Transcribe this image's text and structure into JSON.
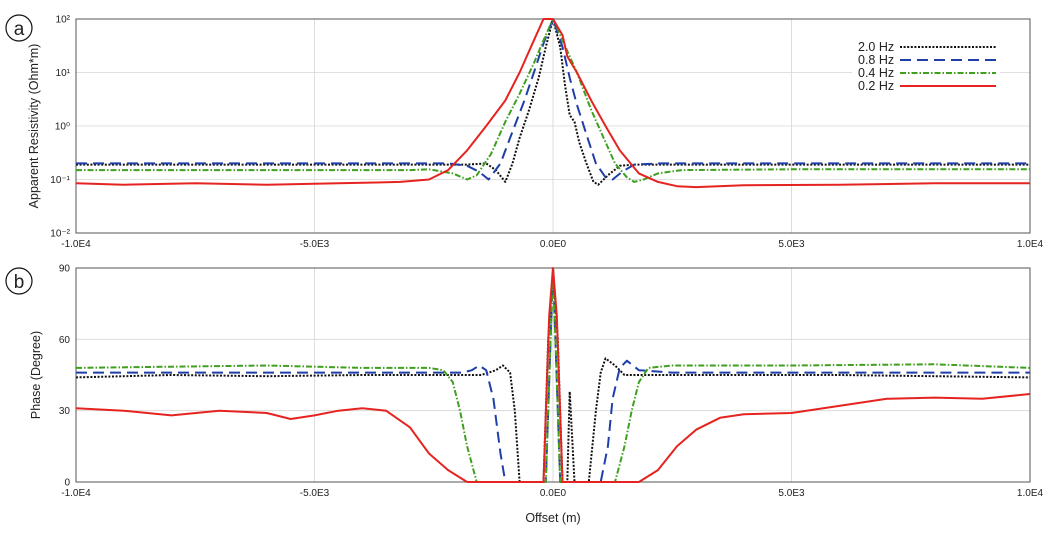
{
  "figure": {
    "panel_a_label": "a",
    "panel_b_label": "b",
    "xlabel": "Offset (m)"
  },
  "legend": [
    "2.0 Hz",
    "0.8 Hz",
    "0.4 Hz",
    "0.2 Hz"
  ],
  "chart_data": [
    {
      "type": "line",
      "panel": "a",
      "ylabel": "Apparent Resistivity (Ohm*m)",
      "yscale": "log",
      "xlim": [
        -10000,
        10000
      ],
      "ylim": [
        0.01,
        100
      ],
      "xticks": [
        -10000,
        -5000,
        0,
        5000,
        10000
      ],
      "xtick_labels": [
        "-1.0E4",
        "-5.0E3",
        "0.0E0",
        "5.0E3",
        "1.0E4"
      ],
      "yticks": [
        0.01,
        0.1,
        1,
        10,
        100
      ],
      "ytick_labels": [
        "10⁻²",
        "10⁻¹",
        "10⁰",
        "10¹",
        "10²"
      ],
      "series": [
        {
          "name": "2.0 Hz",
          "color": "#111111",
          "dash": "2,1.6",
          "points": [
            [
              -10000,
              0.19
            ],
            [
              -7000,
              0.19
            ],
            [
              -3000,
              0.19
            ],
            [
              -1800,
              0.19
            ],
            [
              -1400,
              0.2
            ],
            [
              -1200,
              0.15
            ],
            [
              -1000,
              0.09
            ],
            [
              -850,
              0.2
            ],
            [
              -700,
              0.6
            ],
            [
              -500,
              2
            ],
            [
              -300,
              8
            ],
            [
              -150,
              30
            ],
            [
              0,
              110
            ],
            [
              150,
              30
            ],
            [
              250,
              6
            ],
            [
              350,
              1.6
            ],
            [
              450,
              1.2
            ],
            [
              550,
              0.5
            ],
            [
              700,
              0.2
            ],
            [
              850,
              0.09
            ],
            [
              950,
              0.08
            ],
            [
              1150,
              0.12
            ],
            [
              1400,
              0.18
            ],
            [
              1700,
              0.19
            ],
            [
              3000,
              0.19
            ],
            [
              7000,
              0.19
            ],
            [
              10000,
              0.19
            ]
          ]
        },
        {
          "name": "0.8 Hz",
          "color": "#1f3fa8",
          "dash": "11,6",
          "points": [
            [
              -10000,
              0.2
            ],
            [
              -7000,
              0.2
            ],
            [
              -3000,
              0.2
            ],
            [
              -2200,
              0.2
            ],
            [
              -1800,
              0.18
            ],
            [
              -1550,
              0.14
            ],
            [
              -1350,
              0.1
            ],
            [
              -1100,
              0.2
            ],
            [
              -900,
              0.6
            ],
            [
              -600,
              3
            ],
            [
              -400,
              10
            ],
            [
              -200,
              35
            ],
            [
              0,
              110
            ],
            [
              200,
              30
            ],
            [
              350,
              8
            ],
            [
              500,
              2.5
            ],
            [
              700,
              0.7
            ],
            [
              900,
              0.2
            ],
            [
              1100,
              0.11
            ],
            [
              1250,
              0.1
            ],
            [
              1450,
              0.14
            ],
            [
              1700,
              0.19
            ],
            [
              2200,
              0.2
            ],
            [
              5000,
              0.2
            ],
            [
              10000,
              0.2
            ]
          ]
        },
        {
          "name": "0.4 Hz",
          "color": "#3f9f1f",
          "dash": "6,2,1.5,2",
          "points": [
            [
              -10000,
              0.15
            ],
            [
              -7000,
              0.15
            ],
            [
              -3000,
              0.15
            ],
            [
              -2600,
              0.155
            ],
            [
              -2100,
              0.13
            ],
            [
              -1800,
              0.1
            ],
            [
              -1600,
              0.12
            ],
            [
              -1300,
              0.3
            ],
            [
              -1000,
              1.2
            ],
            [
              -700,
              4
            ],
            [
              -400,
              15
            ],
            [
              -200,
              40
            ],
            [
              0,
              120
            ],
            [
              200,
              40
            ],
            [
              500,
              10
            ],
            [
              800,
              2
            ],
            [
              1100,
              0.5
            ],
            [
              1300,
              0.2
            ],
            [
              1550,
              0.11
            ],
            [
              1700,
              0.09
            ],
            [
              1900,
              0.1
            ],
            [
              2200,
              0.13
            ],
            [
              2700,
              0.15
            ],
            [
              5000,
              0.155
            ],
            [
              10000,
              0.155
            ]
          ]
        },
        {
          "name": "0.2 Hz",
          "color": "#e52421",
          "dash": "",
          "points": [
            [
              -10000,
              0.085
            ],
            [
              -9000,
              0.08
            ],
            [
              -7500,
              0.085
            ],
            [
              -6000,
              0.08
            ],
            [
              -4500,
              0.085
            ],
            [
              -3200,
              0.09
            ],
            [
              -2600,
              0.1
            ],
            [
              -2200,
              0.15
            ],
            [
              -1800,
              0.35
            ],
            [
              -1400,
              1
            ],
            [
              -1000,
              3
            ],
            [
              -700,
              10
            ],
            [
              -400,
              40
            ],
            [
              -200,
              100
            ],
            [
              0,
              130
            ],
            [
              100,
              70
            ],
            [
              200,
              50
            ],
            [
              300,
              20
            ],
            [
              500,
              10
            ],
            [
              800,
              3
            ],
            [
              1100,
              1
            ],
            [
              1400,
              0.35
            ],
            [
              1800,
              0.13
            ],
            [
              2200,
              0.09
            ],
            [
              2600,
              0.075
            ],
            [
              3000,
              0.072
            ],
            [
              4000,
              0.078
            ],
            [
              6000,
              0.08
            ],
            [
              8000,
              0.085
            ],
            [
              10000,
              0.085
            ]
          ]
        }
      ]
    },
    {
      "type": "line",
      "panel": "b",
      "ylabel": "Phase (Degree)",
      "xlabel": "Offset (m)",
      "xlim": [
        -10000,
        10000
      ],
      "ylim": [
        0,
        90
      ],
      "xticks": [
        -10000,
        -5000,
        0,
        5000,
        10000
      ],
      "xtick_labels": [
        "-1.0E4",
        "-5.0E3",
        "0.0E0",
        "5.0E3",
        "1.0E4"
      ],
      "yticks": [
        0,
        30,
        60,
        90
      ],
      "ytick_labels": [
        "0",
        "30",
        "60",
        "90"
      ],
      "series": [
        {
          "name": "2.0 Hz",
          "color": "#111111",
          "dash": "2,1.6",
          "points": [
            [
              -10000,
              44
            ],
            [
              -8000,
              45
            ],
            [
              -6000,
              44.5
            ],
            [
              -4000,
              45
            ],
            [
              -2000,
              45
            ],
            [
              -1500,
              45
            ],
            [
              -1200,
              47
            ],
            [
              -1050,
              49
            ],
            [
              -900,
              46
            ],
            [
              -800,
              30
            ],
            [
              -700,
              0
            ],
            [
              -200,
              0
            ],
            [
              -100,
              60
            ],
            [
              0,
              90
            ],
            [
              100,
              60
            ],
            [
              200,
              0
            ],
            [
              300,
              0
            ],
            [
              350,
              38
            ],
            [
              450,
              0
            ],
            [
              750,
              0
            ],
            [
              900,
              30
            ],
            [
              1000,
              46
            ],
            [
              1100,
              52
            ],
            [
              1300,
              49
            ],
            [
              1500,
              45
            ],
            [
              3000,
              45
            ],
            [
              6000,
              45
            ],
            [
              8000,
              44.5
            ],
            [
              10000,
              44
            ]
          ]
        },
        {
          "name": "0.8 Hz",
          "color": "#1f3fa8",
          "dash": "11,6",
          "points": [
            [
              -10000,
              46
            ],
            [
              -8000,
              46
            ],
            [
              -6000,
              46
            ],
            [
              -4000,
              46
            ],
            [
              -2500,
              46
            ],
            [
              -1900,
              46
            ],
            [
              -1700,
              47
            ],
            [
              -1550,
              49
            ],
            [
              -1400,
              47
            ],
            [
              -1250,
              35
            ],
            [
              -1100,
              12
            ],
            [
              -1000,
              0
            ],
            [
              -150,
              0
            ],
            [
              0,
              90
            ],
            [
              150,
              0
            ],
            [
              1000,
              0
            ],
            [
              1150,
              15
            ],
            [
              1250,
              35
            ],
            [
              1400,
              48
            ],
            [
              1550,
              51
            ],
            [
              1800,
              47
            ],
            [
              2500,
              46
            ],
            [
              6000,
              46
            ],
            [
              10000,
              46
            ]
          ]
        },
        {
          "name": "0.4 Hz",
          "color": "#3f9f1f",
          "dash": "6,2,1.5,2",
          "points": [
            [
              -10000,
              48
            ],
            [
              -8000,
              48.5
            ],
            [
              -6000,
              49
            ],
            [
              -4000,
              48
            ],
            [
              -2600,
              48
            ],
            [
              -2300,
              47
            ],
            [
              -2100,
              42
            ],
            [
              -1950,
              30
            ],
            [
              -1800,
              15
            ],
            [
              -1600,
              0
            ],
            [
              -150,
              0
            ],
            [
              0,
              90
            ],
            [
              150,
              0
            ],
            [
              1300,
              0
            ],
            [
              1500,
              15
            ],
            [
              1650,
              30
            ],
            [
              1800,
              42
            ],
            [
              2000,
              48
            ],
            [
              2500,
              49
            ],
            [
              5000,
              49
            ],
            [
              8000,
              49.5
            ],
            [
              10000,
              48
            ]
          ]
        },
        {
          "name": "0.2 Hz",
          "color": "#e52421",
          "dash": "",
          "points": [
            [
              -10000,
              31
            ],
            [
              -9000,
              30
            ],
            [
              -8000,
              28
            ],
            [
              -7000,
              30
            ],
            [
              -6000,
              29
            ],
            [
              -5500,
              26.5
            ],
            [
              -5000,
              28
            ],
            [
              -4500,
              30
            ],
            [
              -4000,
              31
            ],
            [
              -3500,
              30
            ],
            [
              -3000,
              23
            ],
            [
              -2600,
              12
            ],
            [
              -2200,
              5
            ],
            [
              -1800,
              0
            ],
            [
              -200,
              0
            ],
            [
              -80,
              70
            ],
            [
              0,
              90
            ],
            [
              80,
              70
            ],
            [
              200,
              0
            ],
            [
              1800,
              0
            ],
            [
              2200,
              5
            ],
            [
              2600,
              15
            ],
            [
              3000,
              22
            ],
            [
              3500,
              27
            ],
            [
              4000,
              28.5
            ],
            [
              5000,
              29
            ],
            [
              6000,
              32
            ],
            [
              7000,
              35
            ],
            [
              8000,
              35.5
            ],
            [
              9000,
              35
            ],
            [
              10000,
              37
            ]
          ]
        }
      ]
    }
  ]
}
